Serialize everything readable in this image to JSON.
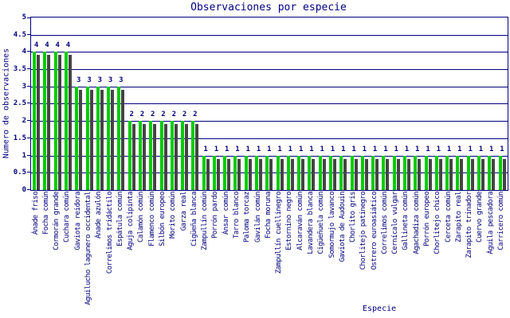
{
  "page": {
    "background": "#ffffff",
    "accent_color": "#000080"
  },
  "chart_data": {
    "type": "bar",
    "title": "Observaciones por especie",
    "xlabel": "Especie",
    "ylabel": "Numero de observaciones",
    "ylim": [
      0,
      5
    ],
    "ytick_step": 0.5,
    "yticks": [
      0,
      0.5,
      1,
      1.5,
      2,
      2.5,
      3,
      3.5,
      4,
      4.5,
      5
    ],
    "grid": true,
    "legend": "none",
    "value_labels_shown": true,
    "bar_color": "#00cc00",
    "bar_shadow_color": "#444444",
    "axis_color": "#000080",
    "categories": [
      "Ánade friso",
      "Focha común",
      "Cormorán grande",
      "Cuchara común",
      "Gaviota reidora",
      "Aguilucho lagunero occidental",
      "Ánade azulón",
      "Correlimos tridáctilo",
      "Espátula común",
      "Aguja colipinta",
      "Calamón común",
      "Flamenco común",
      "Silbón europeo",
      "Morito común",
      "Garza real",
      "Cigüeña blanca",
      "Zampullín común",
      "Porrón pardo",
      "Ánsar común",
      "Tarro blanco",
      "Paloma torcaz",
      "Gavilán común",
      "Focha moruna",
      "Zampullín cuellinegro",
      "Estornino negro",
      "Alcaraván común",
      "Lavandera blanca",
      "Cigüeñuela común",
      "Somormujo lavanco",
      "Gaviota de Audouin",
      "Chorlito gris",
      "Chorlitejo patinegro",
      "Ostrero euroasiático",
      "Correlimos común",
      "Cernícalo vulgar",
      "Gallineta común",
      "Agachadiza común",
      "Porrón europeo",
      "Chorlitejo chico",
      "Cerceta común",
      "Zarapito real",
      "Zarapito trinador",
      "Cuervo grande",
      "Águila pescadora",
      "Carricero común"
    ],
    "values": [
      4,
      4,
      4,
      4,
      3,
      3,
      3,
      3,
      3,
      2,
      2,
      2,
      2,
      2,
      2,
      2,
      1,
      1,
      1,
      1,
      1,
      1,
      1,
      1,
      1,
      1,
      1,
      1,
      1,
      1,
      1,
      1,
      1,
      1,
      1,
      1,
      1,
      1,
      1,
      1,
      1,
      1,
      1,
      1,
      1
    ]
  }
}
